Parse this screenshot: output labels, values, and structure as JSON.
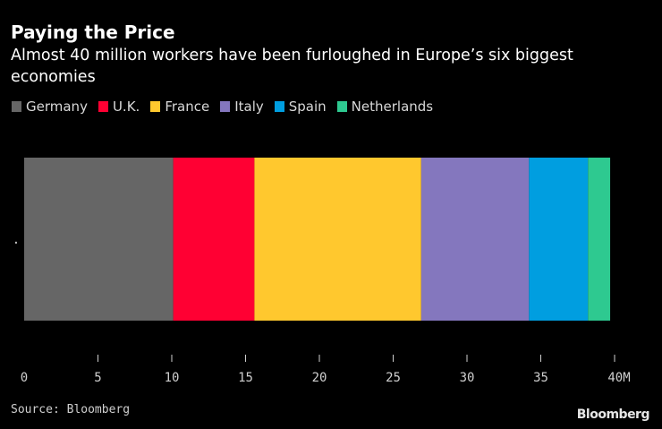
{
  "chart_data": {
    "type": "bar",
    "orientation": "horizontal",
    "stacked": true,
    "title": "Paying the Price",
    "subtitle": "Almost 40 million workers have been furloughed in Europe’s six biggest economies",
    "categories": [
      "."
    ],
    "series": [
      {
        "name": "Germany",
        "values": [
          10.1
        ],
        "color": "#666666"
      },
      {
        "name": "U.K.",
        "values": [
          5.5
        ],
        "color": "#ff0033"
      },
      {
        "name": "France",
        "values": [
          11.3
        ],
        "color": "#ffc82e"
      },
      {
        "name": "Italy",
        "values": [
          7.3
        ],
        "color": "#8477be"
      },
      {
        "name": "Spain",
        "values": [
          4.0
        ],
        "color": "#009ee0"
      },
      {
        "name": "Netherlands",
        "values": [
          1.5
        ],
        "color": "#2ec990"
      }
    ],
    "xlim": [
      0,
      40
    ],
    "xticks": [
      0,
      5,
      10,
      15,
      20,
      25,
      30,
      35,
      40
    ],
    "xtick_labels": [
      "0",
      "5",
      "10",
      "15",
      "20",
      "25",
      "30",
      "35",
      "40M"
    ],
    "xlabel": "",
    "ylabel": "",
    "legend_position": "top-left",
    "grid": false
  },
  "footer": {
    "source": "Source: Bloomberg",
    "brand": "Bloomberg"
  }
}
